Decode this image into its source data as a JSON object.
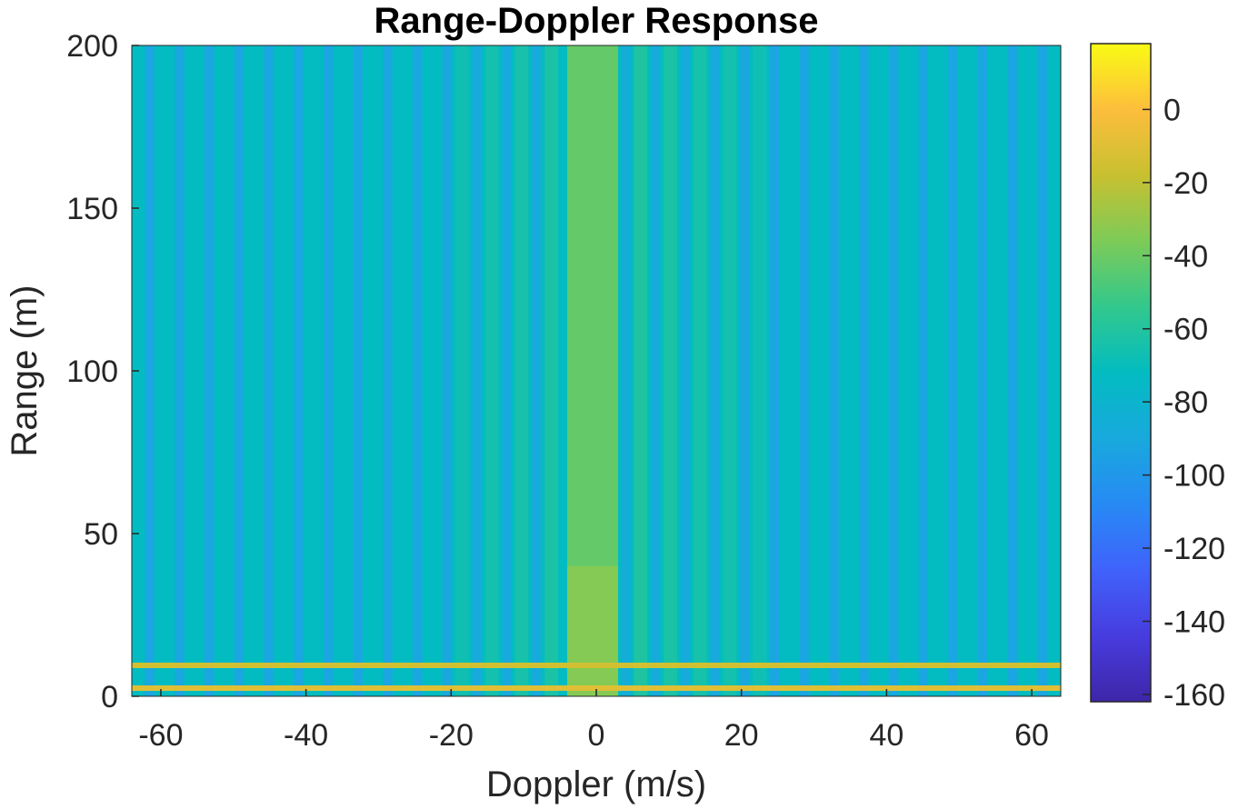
{
  "chart_data": {
    "type": "heatmap",
    "title": "Range-Doppler Response",
    "xlabel": "Doppler (m/s)",
    "ylabel": "Range (m)",
    "xlim": [
      -64,
      64
    ],
    "ylim": [
      0,
      200
    ],
    "x_ticks": [
      -60,
      -40,
      -20,
      0,
      20,
      40,
      60
    ],
    "y_ticks": [
      0,
      50,
      100,
      150,
      200
    ],
    "colorbar": {
      "clim": [
        -162,
        18
      ],
      "ticks": [
        0,
        -20,
        -40,
        -60,
        -80,
        -100,
        -120,
        -140,
        -160
      ],
      "colormap": "parula"
    },
    "doppler_bin_spacing": 4.1,
    "pattern": {
      "background_db": -72,
      "dark_stripe_db": -92,
      "center_band_db": -42,
      "center_band_x": [
        -4,
        3
      ],
      "bright_lines": [
        {
          "range": 2.5,
          "db": -10
        },
        {
          "range": 9.5,
          "db": -15
        }
      ]
    }
  }
}
